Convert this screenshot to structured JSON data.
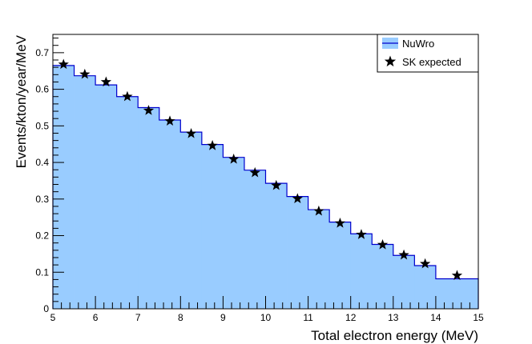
{
  "chart_data": {
    "type": "histogram",
    "title": "",
    "xlabel": "Total electron energy  (MeV)",
    "ylabel": "Events/kton/year/MeV",
    "xlim": [
      5,
      15
    ],
    "ylim": [
      0,
      0.75
    ],
    "x_ticks": [
      5,
      6,
      7,
      8,
      9,
      10,
      11,
      12,
      13,
      14,
      15
    ],
    "y_ticks": [
      0,
      0.1,
      0.2,
      0.3,
      0.4,
      0.5,
      0.6,
      0.7
    ],
    "y_tick_labels": [
      "0",
      "0.1",
      "0.2",
      "0.3",
      "0.4",
      "0.5",
      "0.6",
      "0.7"
    ],
    "legend_position": "top-right",
    "colors": {
      "fill": "#99ccff",
      "line": "#0000cc",
      "marker": "#000000"
    },
    "series": [
      {
        "name": "NuWro",
        "kind": "filled-step-histogram",
        "bin_edges": [
          5,
          5.5,
          6,
          6.5,
          7,
          7.5,
          8,
          8.5,
          9,
          9.5,
          10,
          10.5,
          11,
          11.5,
          12,
          12.5,
          13,
          13.5,
          14,
          15
        ],
        "values": [
          0.665,
          0.637,
          0.612,
          0.58,
          0.55,
          0.516,
          0.483,
          0.449,
          0.414,
          0.379,
          0.343,
          0.307,
          0.271,
          0.237,
          0.205,
          0.176,
          0.146,
          0.118,
          0.082
        ]
      },
      {
        "name": "SK expected",
        "kind": "star-markers",
        "x": [
          5.25,
          5.75,
          6.25,
          6.75,
          7.25,
          7.75,
          8.25,
          8.75,
          9.25,
          9.75,
          10.25,
          10.75,
          11.25,
          11.75,
          12.25,
          12.75,
          13.25,
          13.75,
          14.5
        ],
        "y": [
          0.668,
          0.641,
          0.62,
          0.58,
          0.542,
          0.513,
          0.479,
          0.446,
          0.409,
          0.372,
          0.337,
          0.301,
          0.267,
          0.234,
          0.203,
          0.175,
          0.147,
          0.123,
          0.091
        ]
      }
    ]
  }
}
